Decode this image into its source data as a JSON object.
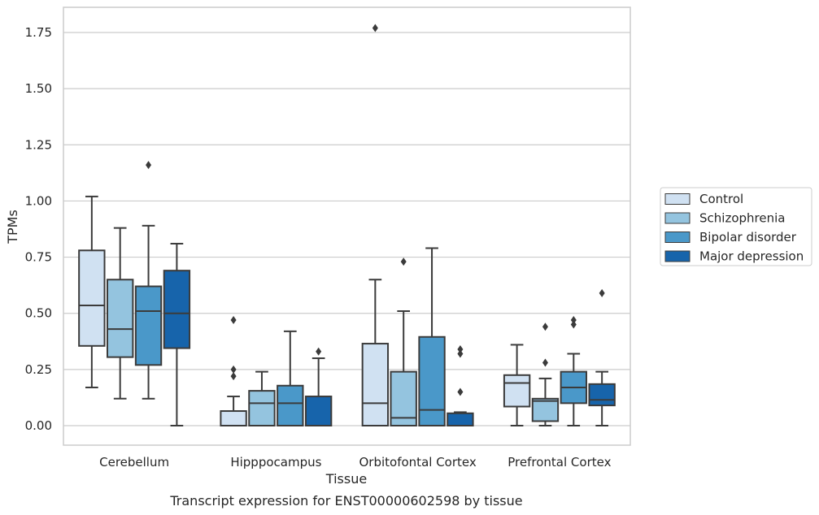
{
  "chart_data": {
    "type": "boxplot",
    "title": "Transcript expression for ENST00000602598 by tissue",
    "xlabel": "Tissue",
    "ylabel": "TPMs",
    "ylim": [
      -0.085,
      1.86
    ],
    "yticks": [
      "0.00",
      "0.25",
      "0.50",
      "0.75",
      "1.00",
      "1.25",
      "1.50",
      "1.75"
    ],
    "ytick_values": [
      0,
      0.25,
      0.5,
      0.75,
      1.0,
      1.25,
      1.5,
      1.75
    ],
    "grid": "horizontal",
    "legend_position": "right",
    "categories": [
      "Cerebellum",
      "Hipppocampus",
      "Orbitofontal Cortex",
      "Prefrontal Cortex"
    ],
    "series": [
      {
        "name": "Control",
        "color": "#d0e1f2",
        "boxes": [
          {
            "whislo": 0.17,
            "q1": 0.355,
            "med": 0.535,
            "q3": 0.78,
            "whishi": 1.02,
            "fliers": []
          },
          {
            "whislo": 0.0,
            "q1": 0.0,
            "med": 0.0,
            "q3": 0.065,
            "whishi": 0.13,
            "fliers": [
              0.22,
              0.25,
              0.47
            ]
          },
          {
            "whislo": 0.0,
            "q1": 0.0,
            "med": 0.1,
            "q3": 0.365,
            "whishi": 0.65,
            "fliers": [
              1.77
            ]
          },
          {
            "whislo": 0.0,
            "q1": 0.085,
            "med": 0.19,
            "q3": 0.225,
            "whishi": 0.36,
            "fliers": []
          }
        ]
      },
      {
        "name": "Schizophrenia",
        "color": "#94c4df",
        "boxes": [
          {
            "whislo": 0.12,
            "q1": 0.305,
            "med": 0.43,
            "q3": 0.65,
            "whishi": 0.88,
            "fliers": []
          },
          {
            "whislo": 0.0,
            "q1": 0.0,
            "med": 0.1,
            "q3": 0.155,
            "whishi": 0.24,
            "fliers": []
          },
          {
            "whislo": 0.0,
            "q1": 0.0,
            "med": 0.035,
            "q3": 0.24,
            "whishi": 0.51,
            "fliers": [
              0.73
            ]
          },
          {
            "whislo": 0.0,
            "q1": 0.02,
            "med": 0.11,
            "q3": 0.12,
            "whishi": 0.21,
            "fliers": [
              0.28,
              0.44
            ]
          }
        ]
      },
      {
        "name": "Bipolar disorder",
        "color": "#4a98c9",
        "boxes": [
          {
            "whislo": 0.12,
            "q1": 0.27,
            "med": 0.51,
            "q3": 0.62,
            "whishi": 0.89,
            "fliers": [
              1.16
            ]
          },
          {
            "whislo": 0.0,
            "q1": 0.0,
            "med": 0.1,
            "q3": 0.178,
            "whishi": 0.42,
            "fliers": []
          },
          {
            "whislo": 0.0,
            "q1": 0.0,
            "med": 0.07,
            "q3": 0.395,
            "whishi": 0.79,
            "fliers": []
          },
          {
            "whislo": 0.0,
            "q1": 0.1,
            "med": 0.17,
            "q3": 0.24,
            "whishi": 0.32,
            "fliers": [
              0.45,
              0.47
            ]
          }
        ]
      },
      {
        "name": "Major depression",
        "color": "#1764ab",
        "boxes": [
          {
            "whislo": 0.0,
            "q1": 0.345,
            "med": 0.5,
            "q3": 0.69,
            "whishi": 0.81,
            "fliers": []
          },
          {
            "whislo": 0.0,
            "q1": 0.0,
            "med": 0.0,
            "q3": 0.13,
            "whishi": 0.3,
            "fliers": [
              0.33
            ]
          },
          {
            "whislo": 0.0,
            "q1": 0.0,
            "med": 0.0,
            "q3": 0.055,
            "whishi": 0.06,
            "fliers": [
              0.15,
              0.32,
              0.34
            ]
          },
          {
            "whislo": 0.0,
            "q1": 0.09,
            "med": 0.115,
            "q3": 0.185,
            "whishi": 0.24,
            "fliers": [
              0.59
            ]
          }
        ]
      }
    ]
  }
}
